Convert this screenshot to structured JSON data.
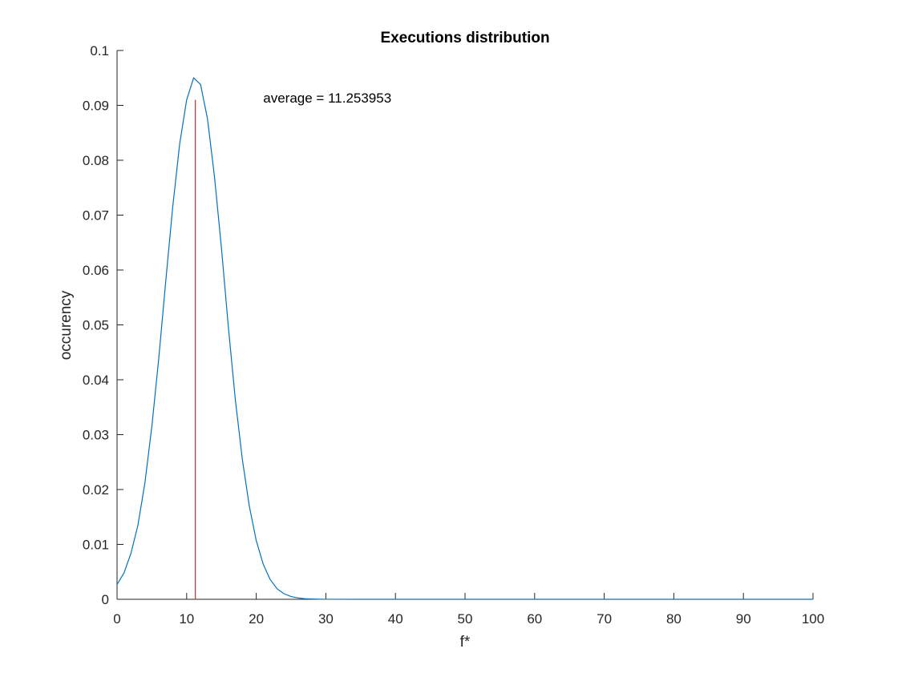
{
  "chart_data": {
    "type": "line",
    "title": "Executions distribution",
    "xlabel": "f*",
    "ylabel": "occurency",
    "xlim": [
      0,
      100
    ],
    "ylim": [
      0,
      0.1
    ],
    "xticks": [
      0,
      10,
      20,
      30,
      40,
      50,
      60,
      70,
      80,
      90,
      100
    ],
    "xtick_labels": [
      "0",
      "10",
      "20",
      "30",
      "40",
      "50",
      "60",
      "70",
      "80",
      "90",
      "100"
    ],
    "yticks": [
      0,
      0.01,
      0.02,
      0.03,
      0.04,
      0.05,
      0.06,
      0.07,
      0.08,
      0.09,
      0.1
    ],
    "ytick_labels": [
      "0",
      "0.01",
      "0.02",
      "0.03",
      "0.04",
      "0.05",
      "0.06",
      "0.07",
      "0.08",
      "0.09",
      "0.1"
    ],
    "grid": false,
    "series": [
      {
        "color": "#0072BD",
        "x": [
          0,
          1,
          2,
          3,
          4,
          5,
          6,
          7,
          8,
          9,
          10,
          11,
          12,
          13,
          14,
          15,
          16,
          17,
          18,
          19,
          20,
          21,
          22,
          23,
          24,
          25,
          26,
          27,
          28,
          29,
          30,
          35,
          40,
          50,
          60,
          70,
          80,
          90,
          100
        ],
        "y": [
          0.0027,
          0.0048,
          0.0084,
          0.0135,
          0.0212,
          0.0315,
          0.044,
          0.058,
          0.0715,
          0.083,
          0.091,
          0.095,
          0.0938,
          0.0875,
          0.077,
          0.064,
          0.0495,
          0.0363,
          0.0255,
          0.017,
          0.0107,
          0.0064,
          0.0036,
          0.0019,
          0.001,
          0.0005,
          0.00025,
          0.0001,
          5e-05,
          2e-05,
          1e-05,
          0,
          0,
          0,
          0,
          0,
          0,
          0,
          0
        ]
      }
    ],
    "average_line": {
      "x": 11.253953,
      "y_top": 0.091,
      "color": "#D62728"
    },
    "annotation": {
      "text": "average = 11.253953",
      "x": 21,
      "y": 0.0905
    }
  }
}
